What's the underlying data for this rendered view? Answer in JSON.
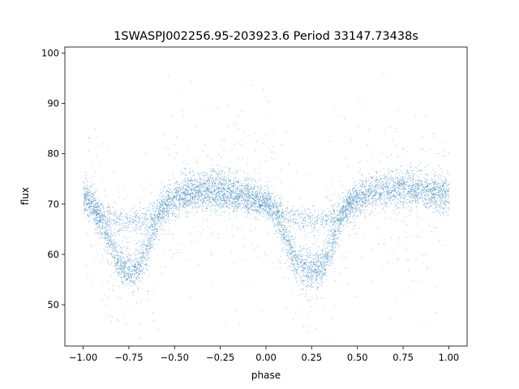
{
  "chart_data": {
    "type": "scatter",
    "title": "1SWASPJ002256.95-203923.6 Period 33147.73438s",
    "xlabel": "phase",
    "ylabel": "flux",
    "xlim": [
      -1.1,
      1.1
    ],
    "ylim": [
      41.8,
      101.2
    ],
    "xticks": [
      -1.0,
      -0.75,
      -0.5,
      -0.25,
      0.0,
      0.25,
      0.5,
      0.75,
      1.0
    ],
    "xtick_labels": [
      "−1.00",
      "−0.75",
      "−0.50",
      "−0.25",
      "0.00",
      "0.25",
      "0.50",
      "0.75",
      "1.00"
    ],
    "yticks": [
      50,
      60,
      70,
      80,
      90,
      100
    ],
    "ytick_labels": [
      "50",
      "60",
      "70",
      "80",
      "90",
      "100"
    ],
    "grid": false,
    "legend": "none",
    "color": "#1f77b4",
    "series": [
      {
        "x": [
          -1.0,
          -0.95,
          -0.9,
          -0.85,
          -0.8,
          -0.75,
          -0.7,
          -0.65,
          -0.6,
          -0.55,
          -0.5,
          -0.45,
          -0.4,
          -0.35,
          -0.3,
          -0.25,
          -0.2,
          -0.15,
          -0.1,
          -0.05,
          0.0,
          0.05,
          0.1,
          0.15,
          0.2,
          0.25,
          0.3,
          0.35,
          0.4,
          0.45,
          0.5,
          0.55,
          0.6,
          0.65,
          0.7,
          0.75,
          0.8,
          0.85,
          0.9,
          0.95,
          1.0
        ],
        "y": [
          71.2,
          70.0,
          66.5,
          62.0,
          58.0,
          56.8,
          57.5,
          61.5,
          66.5,
          69.8,
          71.5,
          72.2,
          72.8,
          73.2,
          73.4,
          73.2,
          72.8,
          72.3,
          71.8,
          71.0,
          70.5,
          68.5,
          64.0,
          59.5,
          57.0,
          56.8,
          57.5,
          61.0,
          66.5,
          69.8,
          71.3,
          72.0,
          72.6,
          73.0,
          73.3,
          73.2,
          72.9,
          72.6,
          72.3,
          72.0,
          71.8
        ]
      },
      {
        "x": [
          -1.0,
          -0.95,
          -0.9,
          -0.85,
          -0.8,
          -0.75,
          -0.7,
          -0.65,
          -0.6,
          -0.55,
          -0.5,
          0.0,
          0.05,
          0.1,
          0.15,
          0.2,
          0.25,
          0.3,
          0.35,
          0.4,
          0.45,
          0.5
        ],
        "y": [
          71.2,
          69.5,
          68.0,
          67.3,
          67.0,
          67.0,
          67.1,
          67.5,
          68.3,
          70.0,
          71.5,
          70.5,
          69.5,
          68.0,
          67.3,
          67.0,
          67.0,
          67.1,
          67.5,
          68.5,
          70.0,
          71.3
        ]
      }
    ]
  }
}
